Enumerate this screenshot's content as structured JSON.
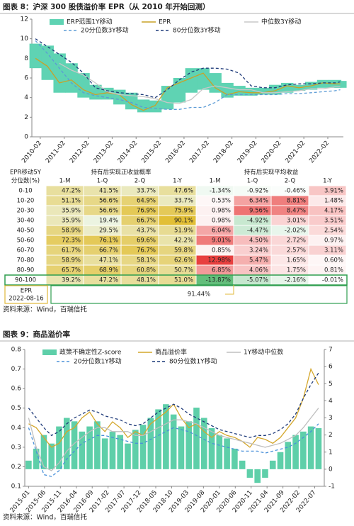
{
  "chart_data": [
    {
      "type": "line",
      "title": "图表 8：沪深 300 股债溢价率 EPR（从 2010 年开始回测）",
      "x": [
        2009.9,
        2010.4,
        2010.9,
        2011.4,
        2011.9,
        2012.4,
        2012.9,
        2013.4,
        2013.9,
        2014.4,
        2014.9,
        2015.4,
        2015.9,
        2016.4,
        2016.9,
        2017.4,
        2017.9,
        2018.4,
        2018.9,
        2019.4,
        2019.9,
        2020.4,
        2020.9,
        2021.4,
        2021.9,
        2022.4,
        2022.62
      ],
      "xlim": [
        2009.75,
        2022.75
      ],
      "xticks": [
        {
          "value": 2010.1,
          "label": "2010-02"
        },
        {
          "value": 2011.1,
          "label": "2011-02"
        },
        {
          "value": 2012.1,
          "label": "2012-02"
        },
        {
          "value": 2013.1,
          "label": "2013-02"
        },
        {
          "value": 2014.1,
          "label": "2014-02"
        },
        {
          "value": 2015.1,
          "label": "2015-02"
        },
        {
          "value": 2016.1,
          "label": "2016-02"
        },
        {
          "value": 2017.1,
          "label": "2017-02"
        },
        {
          "value": 2018.1,
          "label": "2018-02"
        },
        {
          "value": 2019.1,
          "label": "2019-02"
        },
        {
          "value": 2020.1,
          "label": "2020-02"
        },
        {
          "value": 2021.1,
          "label": "2021-02"
        },
        {
          "value": 2022.1,
          "label": "2022-02"
        }
      ],
      "ylim": [
        0,
        12
      ],
      "yticks": [
        0,
        2,
        4,
        6,
        8,
        10,
        12
      ],
      "grid": false,
      "legend": "top",
      "series": [
        {
          "name": "ERP范围1Y移动",
          "kind": "band",
          "color": "#5fd3b3",
          "low": [
            7.0,
            5.8,
            4.5,
            4.5,
            4.0,
            3.8,
            3.8,
            3.3,
            2.8,
            2.5,
            2.5,
            2.8,
            3.5,
            4.5,
            4.8,
            4.5,
            4.0,
            4.2,
            4.2,
            4.3,
            4.3,
            4.5,
            4.7,
            4.8,
            5.0,
            5.0,
            5.0
          ],
          "high": [
            9.5,
            9.3,
            8.5,
            7.5,
            6.5,
            5.3,
            5.0,
            4.8,
            4.5,
            3.8,
            3.7,
            5.2,
            6.0,
            7.0,
            7.0,
            6.5,
            5.5,
            5.2,
            5.0,
            5.0,
            5.3,
            5.5,
            5.3,
            5.6,
            5.8,
            5.8,
            5.7
          ]
        },
        {
          "name": "EPR",
          "kind": "line",
          "color": "#c9a227",
          "values": [
            8.0,
            7.2,
            5.5,
            5.8,
            4.8,
            4.3,
            4.5,
            4.3,
            3.3,
            2.7,
            3.2,
            5.0,
            5.5,
            6.0,
            6.5,
            5.0,
            4.3,
            4.6,
            4.5,
            4.5,
            4.7,
            5.2,
            5.0,
            5.2,
            5.5,
            5.4,
            5.4
          ]
        },
        {
          "name": "中位数3Y移动",
          "kind": "line",
          "color": "#c8c8c8",
          "values": [
            null,
            null,
            7.5,
            6.8,
            6.3,
            5.5,
            4.6,
            4.3,
            4.2,
            4.1,
            3.9,
            3.5,
            3.4,
            3.8,
            4.9,
            5.2,
            5.0,
            4.8,
            4.8,
            4.5,
            4.5,
            4.6,
            4.7,
            4.9,
            4.9,
            5.1,
            5.1
          ]
        },
        {
          "name": "20分位数3Y移动",
          "kind": "line",
          "dash": true,
          "color": "#5b9bd5",
          "values": [
            9.8,
            8.5,
            7.0,
            5.5,
            4.5,
            4.2,
            4.0,
            3.8,
            3.5,
            3.0,
            2.9,
            2.8,
            2.8,
            3.0,
            3.0,
            3.5,
            4.3,
            4.3,
            4.3,
            4.3,
            4.3,
            4.4,
            4.4,
            4.5,
            4.6,
            4.7,
            4.8
          ]
        },
        {
          "name": "80分位数3Y移动",
          "kind": "line",
          "dash": true,
          "color": "#1f3b7a",
          "values": [
            10.0,
            9.2,
            8.4,
            7.6,
            6.5,
            5.0,
            4.7,
            4.5,
            4.4,
            4.3,
            4.0,
            4.8,
            5.8,
            6.6,
            7.0,
            7.0,
            6.9,
            6.5,
            5.2,
            5.0,
            5.0,
            5.3,
            5.4,
            5.4,
            5.5,
            5.5,
            5.6
          ]
        }
      ]
    },
    {
      "type": "combo",
      "title": "图表 9：商品溢价率",
      "x": [
        2015.0,
        2015.2,
        2015.4,
        2015.6,
        2015.8,
        2016.0,
        2016.2,
        2016.4,
        2016.6,
        2016.8,
        2017.0,
        2017.2,
        2017.4,
        2017.6,
        2017.8,
        2018.0,
        2018.2,
        2018.4,
        2018.6,
        2018.8,
        2019.0,
        2019.2,
        2019.4,
        2019.6,
        2019.8,
        2020.0,
        2020.2,
        2020.4,
        2020.6,
        2020.8,
        2021.0,
        2021.2,
        2021.4,
        2021.6,
        2021.8,
        2022.0,
        2022.2,
        2022.4,
        2022.6
      ],
      "xlim": [
        2014.9,
        2022.75
      ],
      "xticks": [
        {
          "value": 2015.0,
          "label": "2015-01"
        },
        {
          "value": 2015.417,
          "label": "2015-06"
        },
        {
          "value": 2015.833,
          "label": "2015-11"
        },
        {
          "value": 2016.25,
          "label": "2016-04"
        },
        {
          "value": 2016.667,
          "label": "2016-09"
        },
        {
          "value": 2017.083,
          "label": "2017-02"
        },
        {
          "value": 2017.5,
          "label": "2017-07"
        },
        {
          "value": 2017.917,
          "label": "2017-12"
        },
        {
          "value": 2018.333,
          "label": "2018-05"
        },
        {
          "value": 2018.75,
          "label": "2018-10"
        },
        {
          "value": 2019.167,
          "label": "2019-03"
        },
        {
          "value": 2019.583,
          "label": "2019-08"
        },
        {
          "value": 2020.0,
          "label": "2020-01"
        },
        {
          "value": 2020.417,
          "label": "2020-06"
        },
        {
          "value": 2020.833,
          "label": "2020-11"
        },
        {
          "value": 2021.25,
          "label": "2021-04"
        },
        {
          "value": 2021.667,
          "label": "2021-09"
        },
        {
          "value": 2022.083,
          "label": "2022-02"
        },
        {
          "value": 2022.5,
          "label": "2022-07"
        }
      ],
      "ylim": [
        0.1,
        0.8
      ],
      "yticks": [
        0.1,
        0.2,
        0.3,
        0.4,
        0.5,
        0.6,
        0.7,
        0.8
      ],
      "y2lim": [
        -1,
        7
      ],
      "y2ticks": [
        -1,
        0,
        1,
        2,
        3,
        4,
        5,
        6,
        7
      ],
      "grid": false,
      "legend": "top",
      "series": [
        {
          "name": "政策不确定性Z-score",
          "kind": "bar",
          "axis": "y2",
          "color": "#5ecfa9",
          "values": [
            0.5,
            1.2,
            2.0,
            1.5,
            2.5,
            3.0,
            2.8,
            2.2,
            2.5,
            2.8,
            1.8,
            2.2,
            2.0,
            1.5,
            2.3,
            2.6,
            3.0,
            3.5,
            3.8,
            3.2,
            2.5,
            2.8,
            3.6,
            3.0,
            2.4,
            2.0,
            1.8,
            1.2,
            0.5,
            -0.5,
            -0.8,
            -0.5,
            0.5,
            1.0,
            1.6,
            2.0,
            2.2,
            2.5,
            2.4
          ]
        },
        {
          "name": "商品溢价率",
          "kind": "line",
          "color": "#d4a72c",
          "values": [
            0.42,
            0.4,
            0.35,
            0.3,
            0.32,
            0.38,
            0.4,
            0.45,
            0.48,
            0.42,
            0.38,
            0.43,
            0.4,
            0.35,
            0.38,
            0.36,
            0.42,
            0.45,
            0.48,
            0.52,
            0.45,
            0.4,
            0.42,
            0.38,
            0.35,
            0.38,
            0.36,
            0.35,
            0.33,
            0.3,
            0.35,
            0.34,
            0.32,
            0.35,
            0.4,
            0.45,
            0.55,
            0.7,
            0.62
          ]
        },
        {
          "name": "1Y移动中位数",
          "kind": "line",
          "color": "#bfbfbf",
          "values": [
            0.45,
            0.3,
            0.2,
            0.18,
            0.22,
            0.28,
            0.32,
            0.35,
            0.38,
            0.4,
            0.4,
            0.38,
            0.38,
            0.38,
            0.36,
            0.36,
            0.38,
            0.4,
            0.42,
            0.44,
            0.44,
            0.43,
            0.42,
            0.4,
            0.38,
            0.36,
            0.35,
            0.34,
            0.33,
            0.32,
            0.31,
            0.3,
            0.31,
            0.32,
            0.34,
            0.36,
            0.4,
            0.45,
            0.5
          ]
        },
        {
          "name": "20分位数1Y移动",
          "kind": "line",
          "dash": true,
          "color": "#4a90d9",
          "values": [
            0.4,
            0.28,
            0.16,
            0.15,
            0.18,
            0.24,
            0.28,
            0.32,
            0.34,
            0.36,
            0.36,
            0.35,
            0.34,
            0.33,
            0.32,
            0.32,
            0.34,
            0.36,
            0.38,
            0.4,
            0.39,
            0.38,
            0.36,
            0.34,
            0.32,
            0.31,
            0.3,
            0.29,
            0.28,
            0.28,
            0.28,
            0.27,
            0.28,
            0.29,
            0.3,
            0.32,
            0.35,
            0.38,
            0.42
          ]
        },
        {
          "name": "80分位数1Y移动",
          "kind": "line",
          "dash": true,
          "color": "#1f3b7a",
          "values": [
            0.5,
            0.45,
            0.4,
            0.36,
            0.38,
            0.42,
            0.45,
            0.47,
            0.49,
            0.48,
            0.46,
            0.45,
            0.44,
            0.42,
            0.41,
            0.42,
            0.45,
            0.48,
            0.5,
            0.52,
            0.5,
            0.47,
            0.45,
            0.43,
            0.41,
            0.39,
            0.38,
            0.37,
            0.36,
            0.35,
            0.36,
            0.36,
            0.37,
            0.39,
            0.42,
            0.47,
            0.55,
            0.62,
            0.68
          ]
        }
      ]
    }
  ],
  "table": {
    "corner_header": [
      "EPR移动5Y",
      "分位数(%)"
    ],
    "group_headers": [
      "持有后实现正收益概率",
      "持有后实现平均收益"
    ],
    "sub_headers": [
      "1-M",
      "1-Q",
      "2-Q",
      "1-Y"
    ],
    "rows": [
      [
        "0-10",
        "47.2%",
        "41.5%",
        "33.7%",
        "47.6%",
        "-1.34%",
        "-0.92%",
        "-0.46%",
        "3.91%"
      ],
      [
        "10-20",
        "51.1%",
        "56.6%",
        "64.9%",
        "33.7%",
        "0.53%",
        "6.34%",
        "8.81%",
        "1.48%"
      ],
      [
        "20-30",
        "35.9%",
        "56.6%",
        "76.9%",
        "75.9%",
        "0.98%",
        "9.56%",
        "8.47%",
        "4.17%"
      ],
      [
        "30-40",
        "35.9%",
        "19.4%",
        "66.7%",
        "90.1%",
        "0.98%",
        "-4.92%",
        "3.01%",
        "3.51%"
      ],
      [
        "40-50",
        "58.9%",
        "29.5%",
        "43.7%",
        "51.9%",
        "6.04%",
        "-4.47%",
        "-2.02%",
        "2.54%"
      ],
      [
        "50-60",
        "72.3%",
        "76.1%",
        "69.6%",
        "42.2%",
        "9.01%",
        "4.50%",
        "2.72%",
        "0.97%"
      ],
      [
        "60-70",
        "61.7%",
        "66.7%",
        "76.7%",
        "59.8%",
        "0.85%",
        "3.24%",
        "2.57%",
        "3.11%"
      ],
      [
        "70-80",
        "58.9%",
        "47.1%",
        "58.1%",
        "62.6%",
        "12.98%",
        "5.47%",
        "1.65%",
        "0.60%"
      ],
      [
        "80-90",
        "65.7%",
        "68.9%",
        "60.8%",
        "50.7%",
        "6.85%",
        "4.06%",
        "1.75%",
        "0.81%"
      ],
      [
        "90-100",
        "39.2%",
        "47.2%",
        "48.1%",
        "51.0%",
        "-13.87%",
        "-5.07%",
        "-2.16%",
        "-0.01%"
      ]
    ],
    "footer": {
      "label": [
        "EPR",
        "2022-08-16"
      ],
      "value": "91.44%"
    }
  },
  "sources": [
    "资料来源：Wind，百瑞信托",
    "资料来源：Wind，百瑞信托"
  ]
}
